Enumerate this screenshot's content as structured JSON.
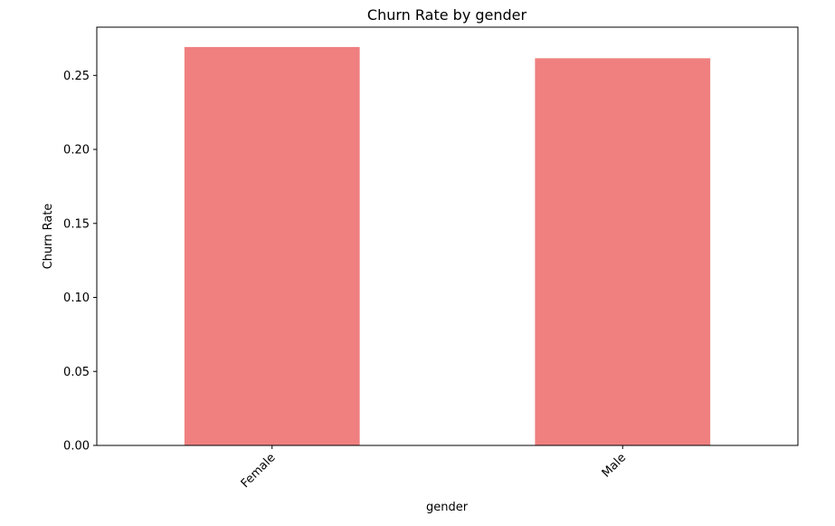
{
  "chart_data": {
    "type": "bar",
    "title": "Churn Rate by gender",
    "xlabel": "gender",
    "ylabel": "Churn Rate",
    "categories": [
      "Female",
      "Male"
    ],
    "values": [
      0.2692,
      0.2616
    ],
    "ylim": [
      0,
      0.2826
    ],
    "yticks": [
      0.0,
      0.05,
      0.1,
      0.15,
      0.2,
      0.25
    ],
    "ytick_labels": [
      "0.00",
      "0.05",
      "0.10",
      "0.15",
      "0.20",
      "0.25"
    ],
    "bar_color": "#f08080",
    "grid": false,
    "legend": "none"
  }
}
